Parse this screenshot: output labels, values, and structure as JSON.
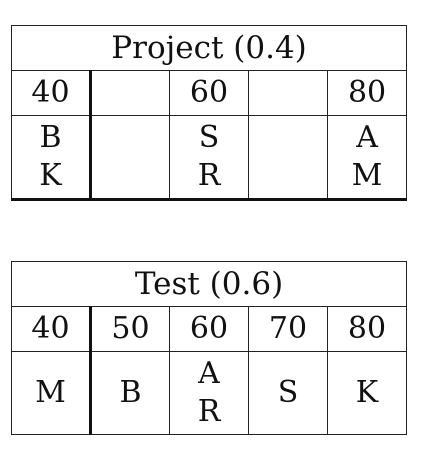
{
  "project": {
    "title": "Project (0.4)",
    "scores": [
      "40",
      "",
      "60",
      "",
      "80"
    ],
    "names": [
      [
        "B",
        "K"
      ],
      [],
      [
        "S",
        "R"
      ],
      [],
      [
        "A",
        "M"
      ]
    ]
  },
  "test": {
    "title": "Test (0.6)",
    "scores": [
      "40",
      "50",
      "60",
      "70",
      "80"
    ],
    "names": [
      [
        "M"
      ],
      [
        "B"
      ],
      [
        "A",
        "R"
      ],
      [
        "S"
      ],
      [
        "K"
      ]
    ]
  }
}
